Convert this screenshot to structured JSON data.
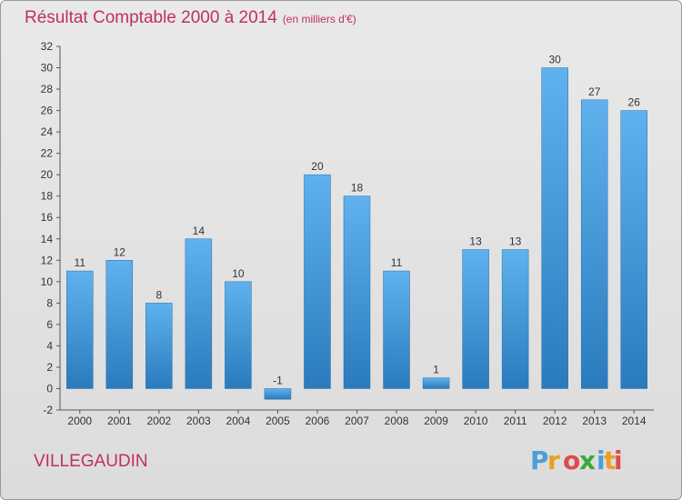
{
  "title": {
    "main": "Résultat Comptable 2000 à 2014",
    "unit": "(en milliers d'€)"
  },
  "location": "VILLEGAUDIN",
  "logo": {
    "text": "Proxiti",
    "letters": [
      "P",
      "r",
      "o",
      "x",
      "i",
      "t",
      "i"
    ]
  },
  "chart_data": {
    "type": "bar",
    "title": "Résultat Comptable 2000 à 2014",
    "subtitle": "(en milliers d'€)",
    "xlabel": "",
    "ylabel": "",
    "categories": [
      "2000",
      "2001",
      "2002",
      "2003",
      "2004",
      "2005",
      "2006",
      "2007",
      "2008",
      "2009",
      "2010",
      "2011",
      "2012",
      "2013",
      "2014"
    ],
    "values": [
      11,
      12,
      8,
      14,
      10,
      -1,
      20,
      18,
      11,
      1,
      13,
      13,
      30,
      27,
      26
    ],
    "data_labels": [
      "11",
      "12",
      "8",
      "14",
      "10",
      "-1",
      "20",
      "18",
      "11",
      "1",
      "13",
      "13",
      "30",
      "27",
      "26"
    ],
    "yticks": [
      -2,
      0,
      2,
      4,
      6,
      8,
      10,
      12,
      14,
      16,
      18,
      20,
      22,
      24,
      26,
      28,
      30,
      32
    ],
    "ylim": [
      -2,
      32
    ],
    "grid": false,
    "colors": {
      "bar_top": "#5fb2ee",
      "bar_bottom": "#2a7bbd",
      "text": "#333333",
      "axis": "#555555",
      "accent": "#c03060"
    }
  }
}
